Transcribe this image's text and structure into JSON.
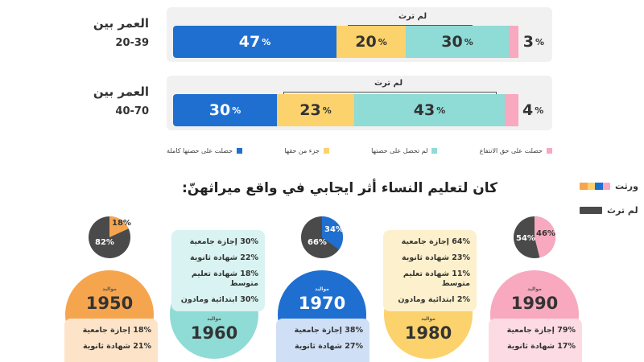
{
  "age_groups": [
    {
      "label_line1": "العمر بين",
      "label_line2": "20-39",
      "not_inherited_label": "لم ترث",
      "segments": [
        {
          "type": "full",
          "value": "47",
          "suffix": "%"
        },
        {
          "type": "part",
          "value": "20",
          "suffix": "%"
        },
        {
          "type": "none",
          "value": "30",
          "suffix": "%"
        },
        {
          "type": "waived",
          "value": "3",
          "suffix": "%"
        }
      ]
    },
    {
      "label_line1": "العمر بين",
      "label_line2": "40-70",
      "not_inherited_label": "لم ترث",
      "segments": [
        {
          "type": "full",
          "value": "30",
          "suffix": "%"
        },
        {
          "type": "part",
          "value": "23",
          "suffix": "%"
        },
        {
          "type": "none",
          "value": "43",
          "suffix": "%"
        },
        {
          "type": "waived",
          "value": "4",
          "suffix": "%"
        }
      ]
    }
  ],
  "legend": {
    "full": "حصلت على حصتها كاملة",
    "part": "جزء من حقها",
    "none": "لم تحصل على حصتها",
    "waived": "حصلت على حق الانتفاع"
  },
  "heading": "كان لتعليم النساء أثر ايجابي في واقع ميراثهنّ:",
  "side_legend": {
    "inherited": "ورثت",
    "not_inherited": "لم ترث"
  },
  "pies": [
    {
      "era": "1950",
      "inherited": "18%",
      "not_inherited": "82%"
    },
    {
      "era": "1970",
      "inherited": "34%",
      "not_inherited": "66%"
    },
    {
      "era": "1990",
      "inherited": "46%",
      "not_inherited": "54%"
    }
  ],
  "eras": [
    {
      "born_label": "مواليد",
      "year": "1950"
    },
    {
      "born_label": "مواليد",
      "year": "1960"
    },
    {
      "born_label": "مواليد",
      "year": "1970"
    },
    {
      "born_label": "مواليد",
      "year": "1980"
    },
    {
      "born_label": "مواليد",
      "year": "1990"
    }
  ],
  "stats": {
    "e1950": [
      "18% إجازة جامعية",
      "21% شهادة ثانوية"
    ],
    "e1960": [
      "30% إجازة جامعية",
      "22% شهادة ثانوية",
      "18% شهادة تعليم متوسط",
      "30% ابتدائية ومادون"
    ],
    "e1970": [
      "38% إجازة جامعية",
      "27% شهادة ثانوية"
    ],
    "e1980": [
      "64% إجازة جامعية",
      "23% شهادة ثانوية",
      "11% شهادة تعليم متوسط",
      "2% ابتدائية ومادون"
    ],
    "e1990": [
      "79% إجازة جامعية",
      "17% شهادة ثانوية"
    ]
  },
  "colors": {
    "full": "#1f6fd1",
    "part": "#fbd26c",
    "none": "#8fdbd6",
    "waived": "#f8a9bf",
    "dark": "#4a4a4a",
    "orange": "#f6a54f",
    "teal": "#8fdbd6",
    "blue": "#1f6fd1",
    "yellow": "#fbd26c",
    "pink": "#f8a9bf"
  }
}
